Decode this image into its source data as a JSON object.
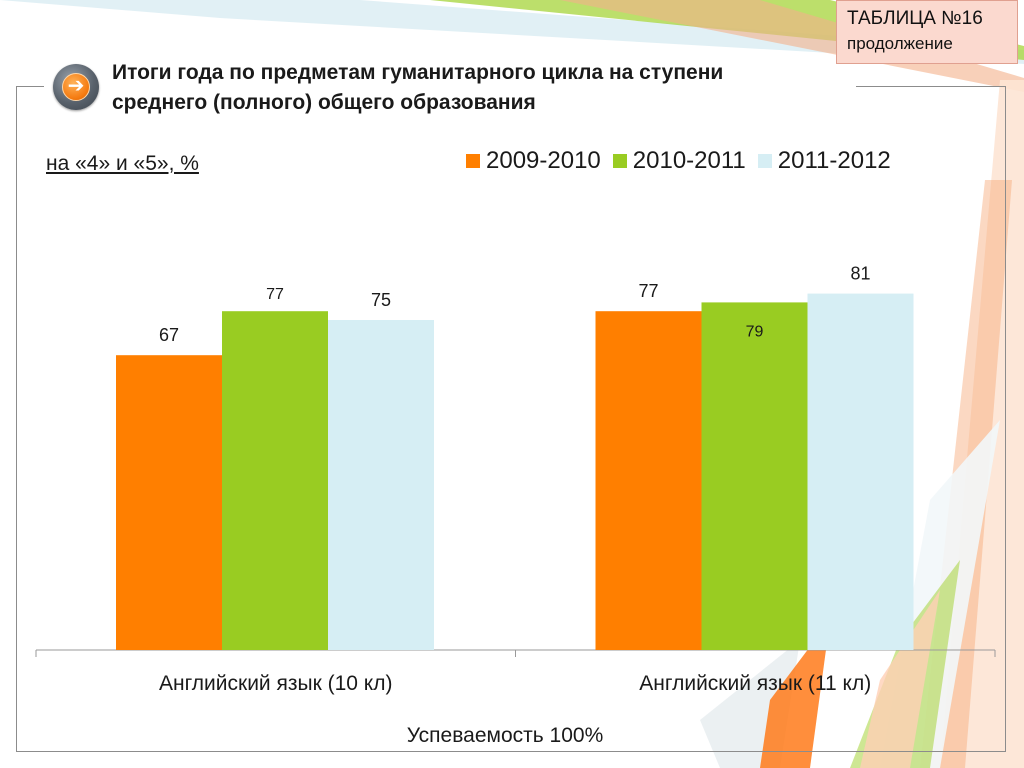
{
  "header": {
    "table_label": "ТАБЛИЦА №16",
    "table_sublabel": "продолжение",
    "title_line1": "Итоги года по предметам гуманитарного цикла на ступени",
    "title_line2": "среднего (полного) общего образования",
    "subtitle": "на «4» и «5», %"
  },
  "colors": {
    "series_2009": "#ff7f00",
    "series_2010": "#99cc22",
    "series_2011": "#d6eef4",
    "icon_accent": "#f57c12",
    "table_label_bg": "#fbd9cf"
  },
  "icons": {
    "nav": "arrow-right-icon"
  },
  "chart_data": {
    "type": "bar",
    "categories": [
      "Английский язык (10 кл)",
      "Английский язык (11 кл)"
    ],
    "series": [
      {
        "name": "2009-2010",
        "values": [
          67,
          77
        ]
      },
      {
        "name": "2010-2011",
        "values": [
          77,
          79
        ]
      },
      {
        "name": "2011-2012",
        "values": [
          75,
          81
        ]
      }
    ],
    "ylim": [
      0,
      100
    ],
    "grid": false,
    "legend_position": "top-right",
    "title": "",
    "xlabel": "Успеваемость 100%",
    "ylabel": ""
  }
}
